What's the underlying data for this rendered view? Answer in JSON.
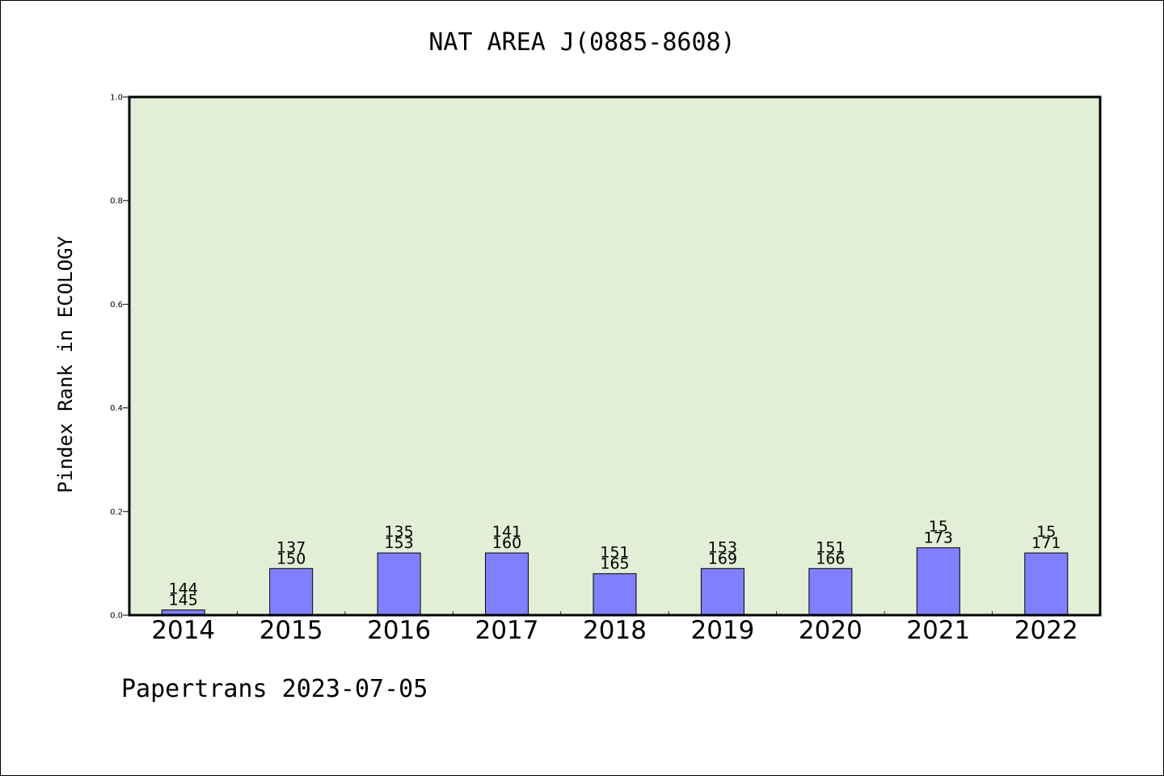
{
  "footer": "Papertrans 2023-07-05",
  "colors": {
    "plot_background": "#e2efd6",
    "bar_fill": "#8080ff",
    "axis": "#000000"
  },
  "chart_data": {
    "type": "bar",
    "title": "NAT AREA J(0885-8608)",
    "xlabel": "",
    "ylabel": "Pindex Rank in ECOLOGY",
    "ylim": [
      0,
      1.0
    ],
    "yticks": [
      "0.0",
      "0.2",
      "0.4",
      "0.6",
      "0.8",
      "1.0"
    ],
    "grid": false,
    "categories": [
      "2014",
      "2015",
      "2016",
      "2017",
      "2018",
      "2019",
      "2020",
      "2021",
      "2022"
    ],
    "values": [
      0.01,
      0.09,
      0.12,
      0.12,
      0.08,
      0.09,
      0.09,
      0.13,
      0.12
    ],
    "label_top": [
      "144",
      "137",
      "135",
      "141",
      "151",
      "153",
      "151",
      "15",
      "15"
    ],
    "label_bottom": [
      "145",
      "150",
      "153",
      "160",
      "165",
      "169",
      "166",
      "173",
      "171"
    ]
  }
}
